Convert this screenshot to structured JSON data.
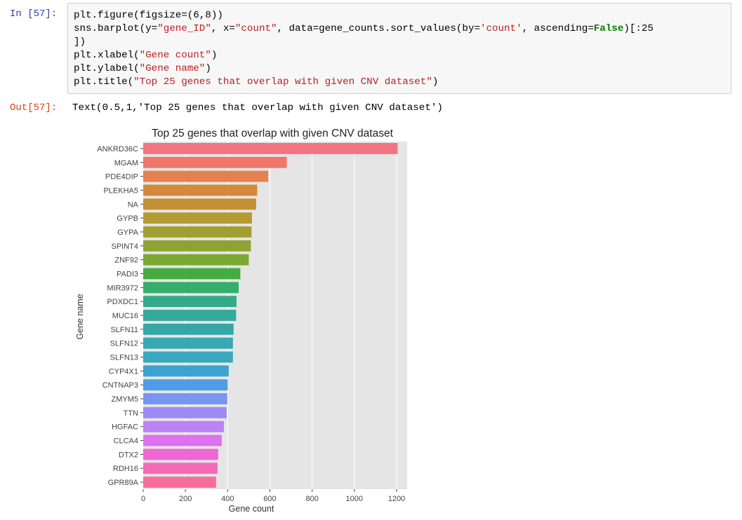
{
  "input_cell": {
    "prompt": "In [57]:",
    "code_lines": [
      [
        {
          "t": "plt.figure(figsize=(6,8))",
          "c": ""
        }
      ],
      [
        {
          "t": "sns.barplot(y=",
          "c": ""
        },
        {
          "t": "\"gene_ID\"",
          "c": "str"
        },
        {
          "t": ", x=",
          "c": ""
        },
        {
          "t": "\"count\"",
          "c": "str"
        },
        {
          "t": ", data=gene_counts.sort_values(by=",
          "c": ""
        },
        {
          "t": "'count'",
          "c": "str"
        },
        {
          "t": ", ascending=",
          "c": ""
        },
        {
          "t": "False",
          "c": "kw"
        },
        {
          "t": ")[:25",
          "c": ""
        }
      ],
      [
        {
          "t": "])",
          "c": ""
        }
      ],
      [
        {
          "t": "plt.xlabel(",
          "c": ""
        },
        {
          "t": "\"Gene count\"",
          "c": "str"
        },
        {
          "t": ")",
          "c": ""
        }
      ],
      [
        {
          "t": "plt.ylabel(",
          "c": ""
        },
        {
          "t": "\"Gene name\"",
          "c": "str"
        },
        {
          "t": ")",
          "c": ""
        }
      ],
      [
        {
          "t": "plt.title(",
          "c": ""
        },
        {
          "t": "\"Top 25 genes that overlap with given CNV dataset\"",
          "c": "str"
        },
        {
          "t": ")",
          "c": ""
        }
      ]
    ]
  },
  "output_cell": {
    "prompt": "Out[57]:",
    "text": "Text(0.5,1,'Top 25 genes that overlap with given CNV dataset')"
  },
  "chart_data": {
    "type": "bar",
    "orientation": "horizontal",
    "title": "Top 25 genes that overlap with given CNV dataset",
    "xlabel": "Gene count",
    "ylabel": "Gene name",
    "xlim": [
      0,
      1250
    ],
    "xticks": [
      0,
      200,
      400,
      600,
      800,
      1000,
      1200
    ],
    "grid": true,
    "categories": [
      "ANKRD36C",
      "MGAM",
      "PDE4DIP",
      "PLEKHA5",
      "NA",
      "GYPB",
      "GYPA",
      "SPINT4",
      "ZNF92",
      "PADI3",
      "MIR3972",
      "PDXDC1",
      "MUC16",
      "SLFN11",
      "SLFN12",
      "SLFN13",
      "CYP4X1",
      "CNTNAP3",
      "ZMYM5",
      "TTN",
      "HGFAC",
      "CLCA4",
      "DTX2",
      "RDH16",
      "GPR89A"
    ],
    "values": [
      1205,
      680,
      592,
      540,
      535,
      515,
      513,
      510,
      500,
      460,
      452,
      442,
      440,
      428,
      425,
      425,
      405,
      400,
      398,
      395,
      382,
      372,
      355,
      352,
      345
    ],
    "colors": [
      "#f37382",
      "#f0766a",
      "#e5814e",
      "#d4883a",
      "#c39035",
      "#b39a32",
      "#a19f32",
      "#90a332",
      "#7aa832",
      "#45ac40",
      "#35ae6c",
      "#35aa89",
      "#35a99b",
      "#36a7a6",
      "#38a8b2",
      "#3aa8bf",
      "#3ba3d0",
      "#4f9de4",
      "#7a94f2",
      "#9d8af4",
      "#bb82f3",
      "#dd71ef",
      "#f066d4",
      "#f46ab6",
      "#f56e99"
    ]
  }
}
